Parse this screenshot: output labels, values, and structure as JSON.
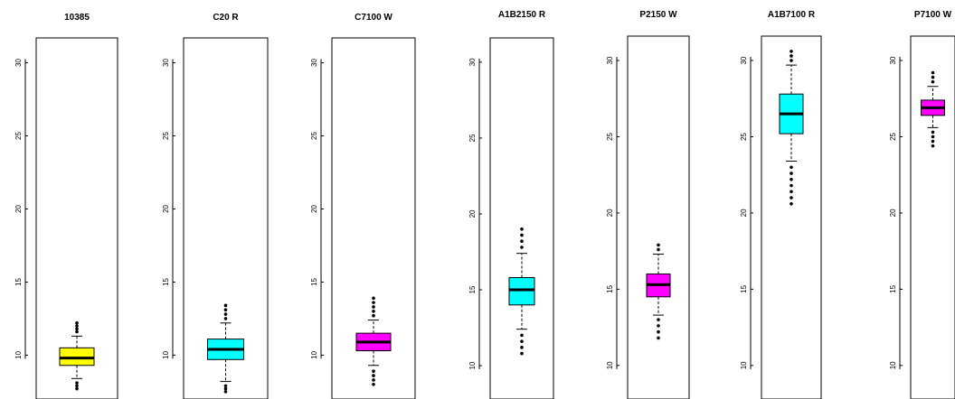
{
  "chart_data": [
    {
      "type": "box",
      "title": "10385",
      "color": "#ffff00",
      "ylim": [
        7.0,
        31.7
      ],
      "y_ticks": [
        10,
        15,
        20,
        25,
        30
      ],
      "box": {
        "q1": 9.3,
        "median": 9.8,
        "q3": 10.5,
        "whisker_low": 8.4,
        "whisker_high": 11.3,
        "outliers_low": [
          7.7,
          7.9,
          8.1
        ],
        "outliers_high": [
          11.6,
          11.8,
          12.0,
          12.2
        ]
      }
    },
    {
      "type": "box",
      "title": "C20 R",
      "color": "#00ffff",
      "ylim": [
        7.0,
        31.7
      ],
      "y_ticks": [
        10,
        15,
        20,
        25,
        30
      ],
      "box": {
        "q1": 9.7,
        "median": 10.4,
        "q3": 11.1,
        "whisker_low": 8.2,
        "whisker_high": 12.2,
        "outliers_low": [
          7.5,
          7.7,
          7.9
        ],
        "outliers_high": [
          12.5,
          12.8,
          13.1,
          13.4
        ]
      }
    },
    {
      "type": "box",
      "title": "C7100 W",
      "color": "#ff00ff",
      "ylim": [
        7.0,
        31.7
      ],
      "y_ticks": [
        10,
        15,
        20,
        25,
        30
      ],
      "box": {
        "q1": 10.3,
        "median": 10.9,
        "q3": 11.5,
        "whisker_low": 9.3,
        "whisker_high": 12.4,
        "outliers_low": [
          8.0,
          8.3,
          8.6,
          8.9
        ],
        "outliers_high": [
          12.7,
          13.0,
          13.3,
          13.6,
          13.9
        ]
      }
    },
    {
      "type": "box",
      "title": "A1B2150 R",
      "color": "#00ffff",
      "ylim": [
        7.8,
        31.6
      ],
      "y_ticks": [
        10,
        15,
        20,
        25,
        30
      ],
      "box": {
        "q1": 14.0,
        "median": 15.0,
        "q3": 15.8,
        "whisker_low": 12.4,
        "whisker_high": 17.4,
        "outliers_low": [
          10.8,
          11.2,
          11.6,
          12.0
        ],
        "outliers_high": [
          17.8,
          18.2,
          18.6,
          19.0
        ]
      }
    },
    {
      "type": "box",
      "title": "P2150 W",
      "color": "#ff00ff",
      "ylim": [
        7.8,
        31.6
      ],
      "y_ticks": [
        10,
        15,
        20,
        25,
        30
      ],
      "box": {
        "q1": 14.5,
        "median": 15.3,
        "q3": 16.0,
        "whisker_low": 13.3,
        "whisker_high": 17.3,
        "outliers_low": [
          11.8,
          12.2,
          12.6,
          13.0
        ],
        "outliers_high": [
          17.6,
          17.9
        ]
      }
    },
    {
      "type": "box",
      "title": "A1B7100 R",
      "color": "#00ffff",
      "ylim": [
        7.8,
        31.6
      ],
      "y_ticks": [
        10,
        15,
        20,
        25,
        30
      ],
      "box": {
        "q1": 25.2,
        "median": 26.5,
        "q3": 27.8,
        "whisker_low": 23.4,
        "whisker_high": 29.7,
        "outliers_low": [
          20.6,
          21.0,
          21.4,
          21.8,
          22.2,
          22.6,
          23.0
        ],
        "outliers_high": [
          30.0,
          30.3,
          30.6
        ]
      }
    },
    {
      "type": "box",
      "title": "P7100 W",
      "color": "#ff00ff",
      "ylim": [
        7.8,
        31.6
      ],
      "y_ticks": [
        10,
        15,
        20,
        25,
        30
      ],
      "box": {
        "q1": 26.4,
        "median": 26.9,
        "q3": 27.4,
        "whisker_low": 25.6,
        "whisker_high": 28.3,
        "outliers_low": [
          24.4,
          24.7,
          25.0,
          25.3
        ],
        "outliers_high": [
          28.6,
          28.9,
          29.2
        ]
      }
    }
  ]
}
